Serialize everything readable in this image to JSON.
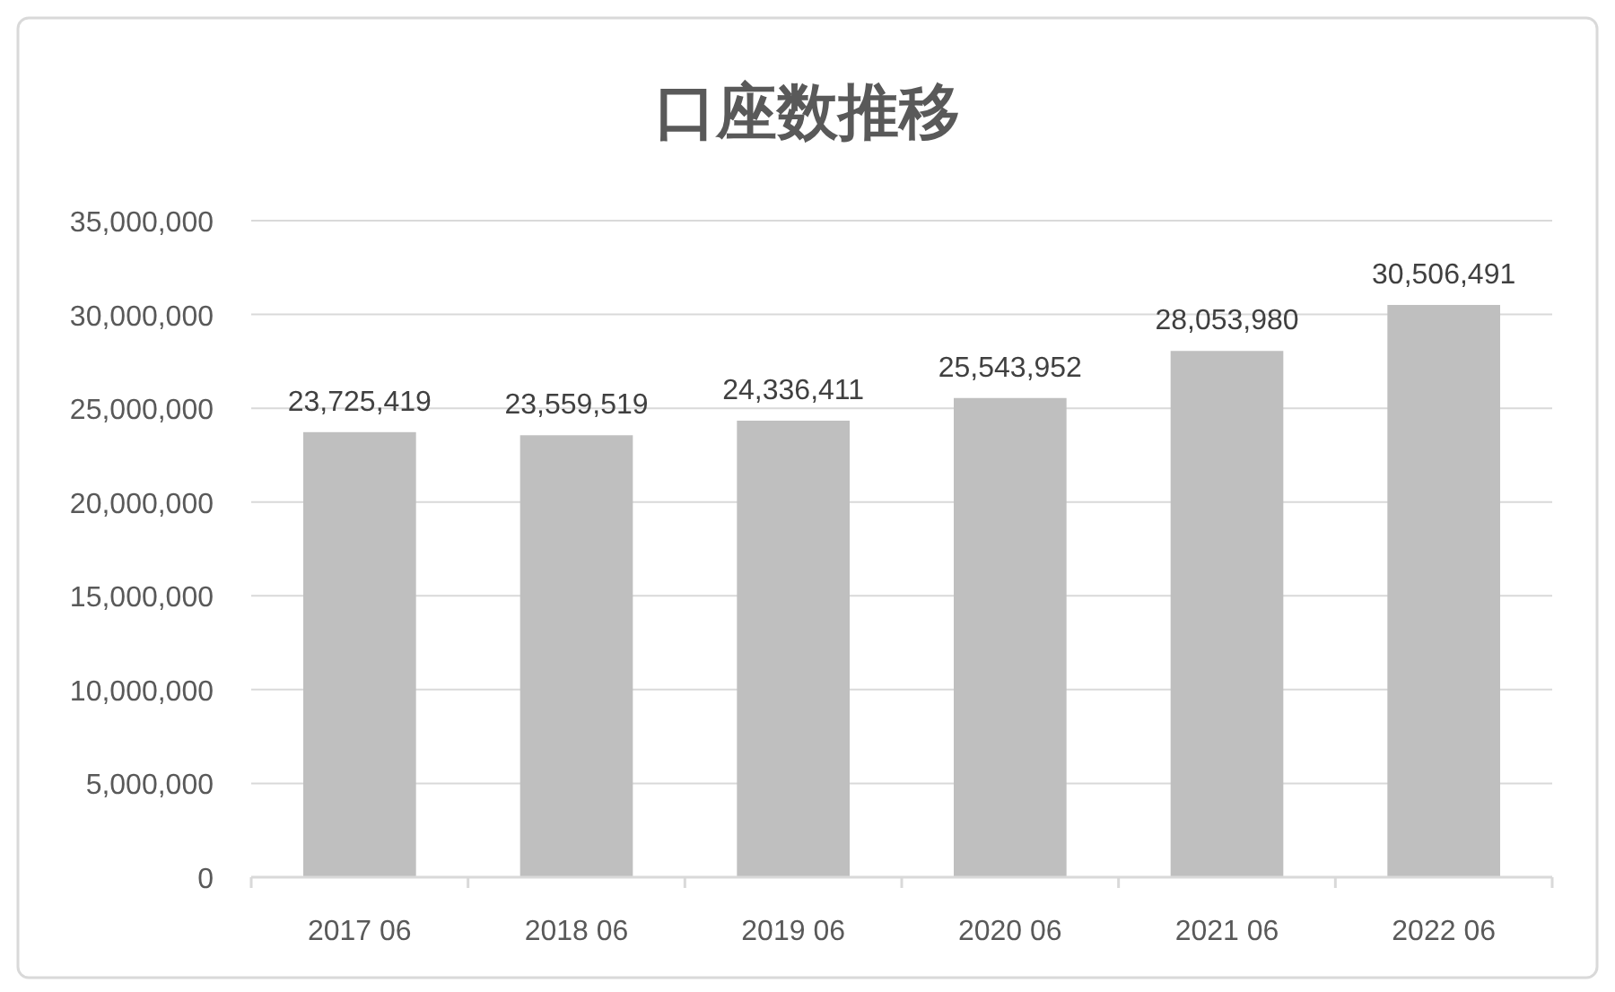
{
  "chart_data": {
    "type": "bar",
    "title": "口座数推移",
    "categories": [
      "2017 06",
      "2018 06",
      "2019 06",
      "2020 06",
      "2021 06",
      "2022 06"
    ],
    "values": [
      23725419,
      23559519,
      24336411,
      25543952,
      28053980,
      30506491
    ],
    "value_labels": [
      "23,725,419",
      "23,559,519",
      "24,336,411",
      "25,543,952",
      "28,053,980",
      "30,506,491"
    ],
    "color": "#bfbfbf",
    "ylim": [
      0,
      35000000
    ],
    "yticks": [
      {
        "value": 0,
        "label": "0"
      },
      {
        "value": 5000000,
        "label": "5,000,000"
      },
      {
        "value": 10000000,
        "label": "10,000,000"
      },
      {
        "value": 15000000,
        "label": "15,000,000"
      },
      {
        "value": 20000000,
        "label": "20,000,000"
      },
      {
        "value": 25000000,
        "label": "25,000,000"
      },
      {
        "value": 30000000,
        "label": "30,000,000"
      },
      {
        "value": 35000000,
        "label": "35,000,000"
      }
    ],
    "grid": "y"
  }
}
